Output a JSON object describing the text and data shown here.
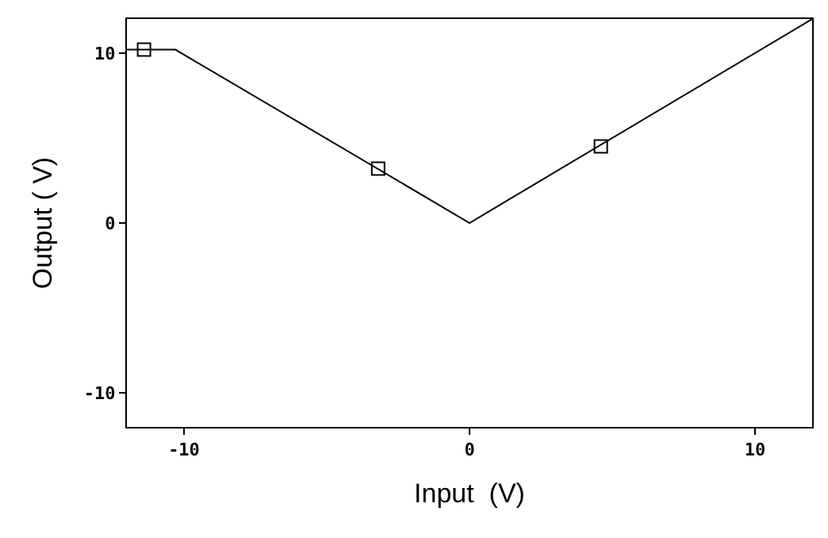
{
  "chart_data": {
    "type": "line",
    "xlabel": "Input  (V)",
    "ylabel": "Output ( V)",
    "series": [
      {
        "color": "#000000",
        "marker": "none",
        "x": [
          -12,
          -10.3,
          0,
          12
        ],
        "values": [
          10.2,
          10.2,
          0,
          12
        ]
      },
      {
        "type": "scatter",
        "color": "#000000",
        "marker": "square",
        "x": [
          -11.4,
          -3.2,
          4.6
        ],
        "values": [
          10.2,
          3.2,
          4.5
        ]
      }
    ],
    "xlim": [
      -12,
      12
    ],
    "ylim": [
      -12,
      12
    ],
    "xticks": [
      -10,
      0,
      10
    ],
    "yticks": [
      -10,
      0,
      10
    ]
  }
}
